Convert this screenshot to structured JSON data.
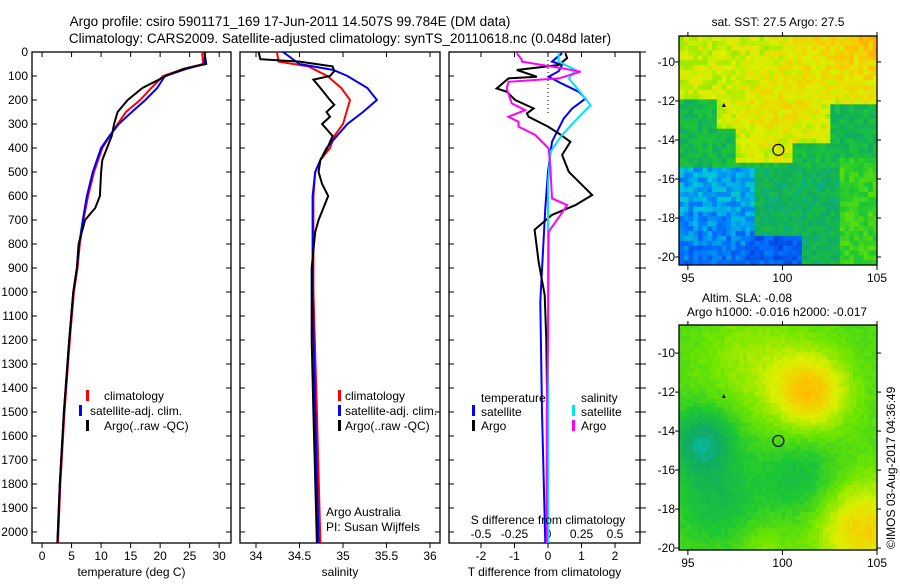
{
  "title": {
    "line1": "Argo profile: csiro 5901171_169 17-Jun-2011 14.507S 99.784E (DM data)",
    "line2": "Climatology: CARS2009. Satellite-adjusted climatology: synTS_20110618.nc (0.048d later)"
  },
  "credit": "©IMOS 03-Aug-2017 04:36:49",
  "colors": {
    "climatology": "#ff0000",
    "satellite": "#0000ff",
    "argo": "#000000",
    "s_satellite": "#00e5ee",
    "s_argo": "#ff00ff"
  },
  "chart_data": {
    "type": "line",
    "depth_ticks": [
      0,
      100,
      200,
      300,
      400,
      500,
      600,
      700,
      800,
      900,
      1000,
      1100,
      1200,
      1300,
      1400,
      1500,
      1600,
      1700,
      1800,
      1900,
      2000
    ],
    "ylim": [
      0,
      2046
    ],
    "panels": [
      {
        "id": "temperature",
        "xlabel": "temperature (deg C)",
        "xticks": [
          0,
          5,
          10,
          15,
          20,
          25,
          30
        ],
        "xlim": [
          -1.7,
          32
        ],
        "legend": {
          "items": [
            "climatology",
            "satellite-adj. clim.",
            "Argo(..raw -QC)"
          ]
        },
        "series": [
          {
            "name": "climatology",
            "color_key": "climatology",
            "depth": [
              0,
              50,
              70,
              100,
              150,
              200,
              250,
              300,
              350,
              400,
              500,
              600,
              700,
              800,
              900,
              1000,
              1200,
              1500,
              1800,
              2046
            ],
            "values": [
              27.1,
              27.3,
              24,
              20.5,
              18.5,
              16.6,
              14.2,
              12.8,
              11.5,
              10.2,
              8.8,
              7.8,
              7,
              6.4,
              6,
              5.4,
              4.7,
              3.8,
              3.1,
              2.7
            ]
          },
          {
            "name": "satellite-adj. clim.",
            "color_key": "satellite",
            "depth": [
              0,
              50,
              70,
              100,
              150,
              200,
              250,
              300,
              350,
              400,
              500,
              600,
              700,
              800,
              900,
              1000,
              1200,
              1500,
              1800,
              2046
            ],
            "values": [
              27.6,
              27.5,
              24.5,
              20.8,
              19.5,
              17.5,
              15.2,
              13,
              11.4,
              10,
              8.6,
              7.6,
              6.9,
              6.3,
              5.9,
              5.3,
              4.6,
              3.7,
              3.0,
              2.6
            ]
          },
          {
            "name": "Argo(..raw -QC)",
            "color_key": "argo",
            "depth": [
              0,
              50,
              70,
              100,
              150,
              200,
              250,
              300,
              350,
              400,
              450,
              500,
              600,
              650,
              700,
              800,
              900,
              1000,
              1200,
              1500,
              1800,
              2046
            ],
            "values": [
              27.5,
              27.8,
              24,
              21,
              17,
              14.5,
              12.8,
              12.2,
              11.8,
              11,
              10.2,
              10,
              9.8,
              9,
              7.3,
              6.2,
              5.9,
              5.3,
              4.6,
              3.7,
              3.0,
              2.6
            ]
          }
        ]
      },
      {
        "id": "salinity",
        "xlabel": "salinity",
        "xticks": [
          34,
          34.5,
          35,
          35.5,
          36
        ],
        "xlim": [
          33.816,
          36.115
        ],
        "legend": {
          "items": [
            "climatology",
            "satellite-adj. clim.",
            "Argo(..raw -QC)"
          ]
        },
        "annotation": [
          "Argo Australia",
          "PI: Susan Wijffels"
        ],
        "series": [
          {
            "name": "climatology",
            "color_key": "climatology",
            "depth": [
              0,
              40,
              60,
              100,
              150,
              200,
              300,
              350,
              400,
              450,
              500,
              600,
              1000,
              1500,
              2046
            ],
            "values": [
              34.24,
              34.26,
              34.6,
              34.82,
              34.98,
              35.08,
              35.0,
              34.9,
              34.85,
              34.74,
              34.68,
              34.66,
              34.66,
              34.7,
              34.74
            ]
          },
          {
            "name": "satellite-adj. clim.",
            "color_key": "satellite",
            "depth": [
              0,
              50,
              75,
              100,
              150,
              200,
              250,
              300,
              350,
              400,
              450,
              500,
              600,
              1000,
              1500,
              2046
            ],
            "values": [
              34.31,
              34.5,
              34.89,
              35.05,
              35.28,
              35.39,
              35.23,
              35.05,
              34.93,
              34.81,
              34.74,
              34.68,
              34.65,
              34.65,
              34.68,
              34.72
            ]
          },
          {
            "name": "Argo(..raw -QC)",
            "color_key": "argo",
            "depth": [
              0,
              30,
              40,
              60,
              80,
              100,
              115,
              150,
              200,
              220,
              250,
              270,
              300,
              350,
              400,
              450,
              500,
              550,
              600,
              700,
              750,
              900,
              1200,
              1500,
              2046
            ],
            "values": [
              34.03,
              34.05,
              34.5,
              34.88,
              34.9,
              34.85,
              34.66,
              34.74,
              34.85,
              34.9,
              34.81,
              34.85,
              34.76,
              34.88,
              34.82,
              34.74,
              34.72,
              34.76,
              34.83,
              34.72,
              34.68,
              34.64,
              34.64,
              34.66,
              34.7
            ]
          }
        ]
      },
      {
        "id": "difference",
        "xlabel": "T difference from climatology",
        "xticks": [
          -2,
          -1,
          0,
          1,
          2
        ],
        "xlim": [
          -2.955,
          2.746
        ],
        "s_label": "S difference from climatology",
        "s_ticks": [
          "-0.5",
          "-0.25",
          "0",
          "0.25",
          "0.5"
        ],
        "s_scale_factor": 4,
        "legend": {
          "temperature_title": "temperature",
          "salinity_title": "salinity",
          "items": [
            "satellite",
            "Argo",
            "satellite",
            "Argo"
          ]
        },
        "series": [
          {
            "name": "T satellite",
            "color_key": "satellite",
            "depth": [
              5,
              40,
              54,
              80,
              103,
              132,
              166,
              194,
              236,
              277,
              374,
              499,
              651,
              1040,
              1500,
              2046
            ],
            "values": [
              0.42,
              0.12,
              0.42,
              0.32,
              0.02,
              0.42,
              0.92,
              1.12,
              0.72,
              0.47,
              0.12,
              0,
              -0.08,
              -0.23,
              -0.18,
              -0.08
            ]
          },
          {
            "name": "T Argo",
            "color_key": "argo",
            "depth": [
              5,
              26,
              54,
              75,
              103,
              110,
              152,
              166,
              200,
              235,
              256,
              270,
              311,
              339,
              374,
              429,
              499,
              596,
              638,
              679,
              741,
              874,
              1013,
              1200,
              1500,
              2046
            ],
            "values": [
              0.52,
              0.57,
              0.32,
              -0.93,
              -0.33,
              -1.18,
              -1.53,
              -1.23,
              -0.98,
              -0.43,
              -0.63,
              -0.58,
              0,
              0.32,
              0.67,
              0.42,
              0.62,
              1.32,
              0.82,
              0.12,
              -0.4,
              -0.28,
              -0.1,
              -0.05,
              -0.02,
              -0.02
            ]
          },
          {
            "name": "S satellite",
            "color_key": "s_satellite",
            "depth": [
              5,
              40,
              75,
              110,
              152,
              222,
              263,
              346,
              416,
              555,
              1040,
              1500,
              2046
            ],
            "values": [
              0.08,
              0.08,
              0.205,
              0.155,
              0.218,
              0.318,
              0.243,
              0.105,
              0.018,
              0,
              0,
              0,
              0
            ]
          },
          {
            "name": "S Argo",
            "color_key": "s_argo",
            "depth": [
              5,
              33,
              40,
              68,
              82,
              110,
              124,
              152,
              194,
              214,
              242,
              270,
              291,
              311,
              346,
              402,
              485,
              610,
              638,
              679,
              749,
              1200,
              1500,
              2046
            ],
            "values": [
              -0.233,
              -0.195,
              -0.195,
              0.105,
              0.243,
              0.08,
              -0.295,
              -0.308,
              -0.283,
              -0.27,
              -0.17,
              -0.295,
              -0.22,
              -0.22,
              -0.095,
              0.005,
              0.018,
              0.03,
              0.143,
              0.093,
              0.005,
              0,
              -0.01,
              -0.01
            ]
          }
        ]
      }
    ],
    "maps": [
      {
        "id": "sst",
        "title": [
          "sat. SST: 27.5 Argo: 27.5"
        ],
        "xticks": [
          95,
          100,
          105
        ],
        "yticks": [
          -10,
          -12,
          -14,
          -16,
          -18,
          -20
        ],
        "lon_range": [
          94.53,
          105
        ],
        "lat_range": [
          -20.41,
          -8.67
        ],
        "profile_position": {
          "lon": 99.784,
          "lat": -14.507
        },
        "marker2": {
          "lon": 96.9,
          "lat": -12.2
        }
      },
      {
        "id": "sla",
        "title": [
          "Altim. SLA: -0.08",
          "Argo h1000: -0.016 h2000: -0.017"
        ],
        "xticks": [
          95,
          100,
          105
        ],
        "yticks": [
          -10,
          -12,
          -14,
          -16,
          -18,
          -20
        ],
        "lon_range": [
          94.53,
          105
        ],
        "lat_range": [
          -20.1,
          -8.56
        ],
        "profile_position": {
          "lon": 99.784,
          "lat": -14.507
        },
        "marker2": {
          "lon": 96.9,
          "lat": -12.2
        }
      }
    ]
  }
}
